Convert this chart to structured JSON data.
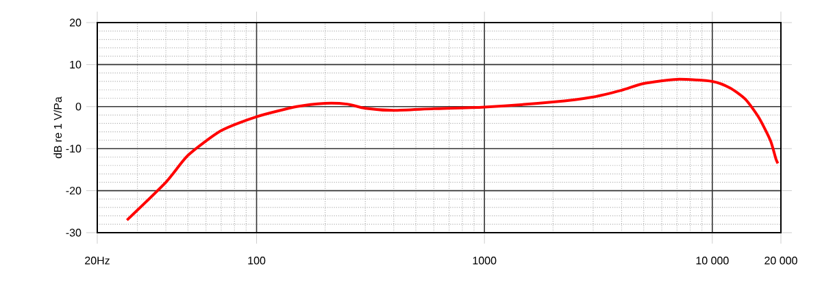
{
  "chart_data": {
    "type": "line",
    "ylabel": "dB re 1 V/Pa",
    "log": "x",
    "grid": true,
    "xlim": [
      20,
      20000
    ],
    "ylim": [
      -30,
      20
    ],
    "xticks": [
      {
        "value": 20,
        "label": "20Hz"
      },
      100,
      1000,
      {
        "value": 10000,
        "label": "10 000"
      },
      {
        "value": 20000,
        "label": "20 000"
      }
    ],
    "yticks": [
      -30,
      -20,
      -10,
      0,
      10,
      20
    ],
    "x": [
      27,
      40,
      50,
      70,
      100,
      150,
      200,
      250,
      300,
      400,
      600,
      1000,
      2000,
      3000,
      4000,
      5000,
      7000,
      10000,
      12000,
      14000,
      16000,
      18000,
      19000,
      19400
    ],
    "series": [
      {
        "color": "#ff0000",
        "values": [
          -27,
          -18,
          -11.6,
          -5.7,
          -2.4,
          0,
          0.8,
          0.6,
          -0.4,
          -0.9,
          -0.5,
          -0.1,
          1.1,
          2.3,
          3.9,
          5.5,
          6.5,
          6.0,
          4.4,
          1.7,
          -2.6,
          -8.1,
          -12.4,
          -13.5
        ]
      }
    ]
  }
}
